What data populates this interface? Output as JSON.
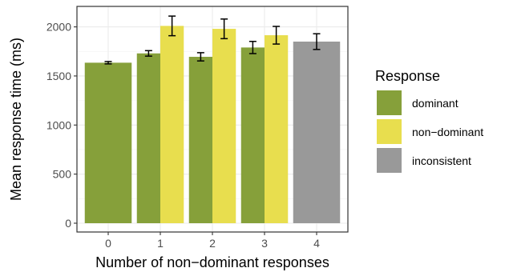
{
  "chart_data": {
    "type": "bar",
    "title": "",
    "xlabel": "Number of non−dominant responses",
    "ylabel": "Mean response time (ms)",
    "categories": [
      "0",
      "1",
      "2",
      "3",
      "4"
    ],
    "yticks": [
      "0",
      "500",
      "1000",
      "1500",
      "2000"
    ],
    "ylim": [
      0,
      2000
    ],
    "grid": true,
    "legend_position": "right",
    "legend_title": "Response",
    "series": [
      {
        "name": "dominant",
        "color": "#86a03a",
        "values": [
          1635,
          1730,
          1695,
          1790,
          null
        ],
        "errors": [
          12,
          28,
          42,
          62,
          null
        ]
      },
      {
        "name": "non−dominant",
        "color": "#e8de4e",
        "values": [
          null,
          2010,
          1980,
          1915,
          null
        ],
        "errors": [
          null,
          100,
          100,
          90,
          null
        ]
      },
      {
        "name": "inconsistent",
        "color": "#999999",
        "values": [
          null,
          null,
          null,
          null,
          1850
        ],
        "errors": [
          null,
          null,
          null,
          null,
          80
        ]
      }
    ]
  }
}
